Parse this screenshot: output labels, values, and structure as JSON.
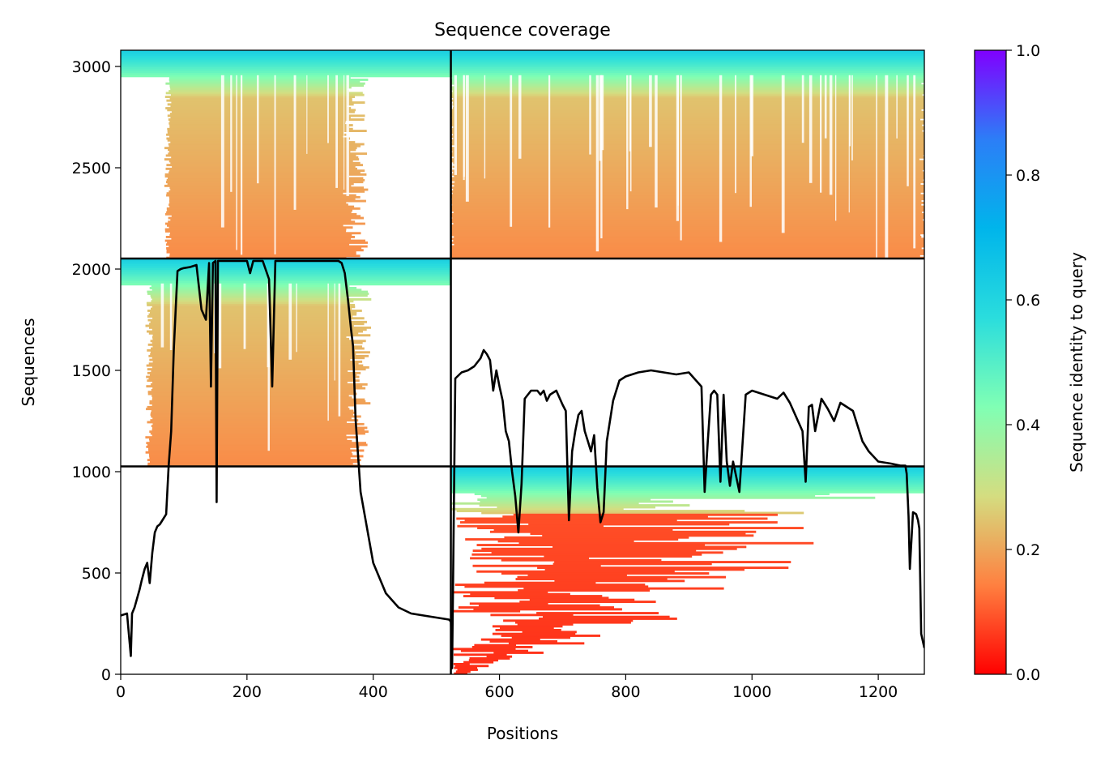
{
  "chart_data": {
    "type": "heatmap",
    "title": "Sequence coverage",
    "xlabel": "Positions",
    "ylabel": "Sequences",
    "xlim": [
      0,
      1273
    ],
    "ylim": [
      0,
      3080
    ],
    "xticks": [
      0,
      200,
      400,
      600,
      800,
      1000,
      1200
    ],
    "yticks": [
      0,
      500,
      1000,
      1500,
      2000,
      2500,
      3000
    ],
    "colorbar": {
      "label": "Sequence identity to query",
      "colormap": "rainbow",
      "range": [
        0,
        1
      ],
      "ticks": [
        0.0,
        0.2,
        0.4,
        0.6,
        0.8,
        1.0
      ],
      "colors": [
        "#ff0000",
        "#ff8040",
        "#d4dd80",
        "#80ffb4",
        "#2adddd",
        "#00b5eb",
        "#2c7ef7",
        "#8000ff"
      ]
    },
    "domain_boundaries": {
      "x": [
        523
      ],
      "y": [
        1026,
        2052
      ]
    },
    "blocks": [
      {
        "x_range": [
          0,
          523
        ],
        "y_range": [
          2052,
          3080
        ],
        "aligned_x": [
          75,
          360
        ],
        "top_identity": 0.62,
        "body_identity": 0.22
      },
      {
        "x_range": [
          523,
          1273
        ],
        "y_range": [
          2052,
          3080
        ],
        "aligned_x": [
          523,
          1273
        ],
        "top_identity": 0.62,
        "body_identity": 0.22
      },
      {
        "x_range": [
          0,
          523
        ],
        "y_range": [
          1026,
          2052
        ],
        "aligned_x": [
          45,
          365
        ],
        "top_identity": 0.62,
        "body_identity": 0.22
      },
      {
        "x_range": [
          523,
          1273
        ],
        "y_range": [
          0,
          1026
        ],
        "aligned_x": [
          523,
          1273
        ],
        "top_identity": 0.62,
        "body_identity": 0.05
      }
    ],
    "coverage_line": {
      "color": "#000000",
      "x": [
        0,
        10,
        16,
        18,
        22,
        30,
        33,
        38,
        42,
        46,
        50,
        54,
        58,
        62,
        68,
        72,
        76,
        80,
        84,
        90,
        95,
        100,
        110,
        120,
        128,
        135,
        140,
        143,
        146,
        150,
        152,
        154,
        157,
        160,
        170,
        180,
        190,
        200,
        205,
        210,
        215,
        225,
        235,
        240,
        245,
        250,
        260,
        270,
        300,
        320,
        340,
        345,
        350,
        355,
        360,
        365,
        368,
        372,
        380,
        400,
        420,
        440,
        460,
        480,
        500,
        520,
        523,
        525,
        530,
        540,
        550,
        560,
        570,
        575,
        580,
        585,
        590,
        595,
        600,
        605,
        610,
        615,
        620,
        625,
        630,
        635,
        640,
        650,
        660,
        665,
        670,
        675,
        680,
        690,
        700,
        705,
        710,
        715,
        720,
        725,
        730,
        735,
        740,
        745,
        750,
        755,
        760,
        765,
        770,
        780,
        785,
        790,
        795,
        800,
        810,
        820,
        840,
        860,
        880,
        900,
        920,
        925,
        930,
        935,
        940,
        945,
        950,
        955,
        960,
        965,
        970,
        980,
        990,
        1000,
        1020,
        1040,
        1050,
        1060,
        1080,
        1085,
        1090,
        1095,
        1100,
        1110,
        1120,
        1130,
        1140,
        1160,
        1175,
        1185,
        1200,
        1220,
        1235,
        1240,
        1243,
        1245,
        1248,
        1250,
        1255,
        1260,
        1263,
        1265,
        1268,
        1273
      ],
      "y": [
        290,
        300,
        90,
        300,
        330,
        420,
        460,
        520,
        550,
        450,
        600,
        700,
        730,
        740,
        770,
        790,
        1030,
        1200,
        1600,
        1990,
        2000,
        2005,
        2010,
        2020,
        1800,
        1750,
        2030,
        1420,
        2030,
        2040,
        850,
        2040,
        2040,
        2040,
        2040,
        2040,
        2040,
        2040,
        1980,
        2040,
        2040,
        2040,
        1950,
        1420,
        2040,
        2040,
        2040,
        2040,
        2040,
        2040,
        2040,
        2040,
        2030,
        1980,
        1850,
        1700,
        1620,
        1260,
        900,
        550,
        400,
        330,
        300,
        290,
        280,
        270,
        260,
        30,
        1460,
        1490,
        1500,
        1520,
        1560,
        1600,
        1580,
        1550,
        1400,
        1500,
        1420,
        1350,
        1200,
        1150,
        1000,
        880,
        700,
        940,
        1360,
        1400,
        1400,
        1380,
        1400,
        1350,
        1380,
        1400,
        1330,
        1300,
        760,
        1100,
        1200,
        1280,
        1300,
        1200,
        1150,
        1100,
        1180,
        920,
        750,
        800,
        1150,
        1350,
        1400,
        1450,
        1460,
        1470,
        1480,
        1490,
        1500,
        1490,
        1480,
        1490,
        1420,
        900,
        1150,
        1380,
        1400,
        1380,
        950,
        1380,
        1050,
        930,
        1050,
        900,
        1380,
        1400,
        1380,
        1360,
        1390,
        1340,
        1200,
        950,
        1320,
        1330,
        1200,
        1360,
        1310,
        1250,
        1340,
        1300,
        1150,
        1100,
        1050,
        1040,
        1030,
        1030,
        1030,
        990,
        780,
        520,
        800,
        790,
        760,
        720,
        200,
        130
      ]
    }
  }
}
